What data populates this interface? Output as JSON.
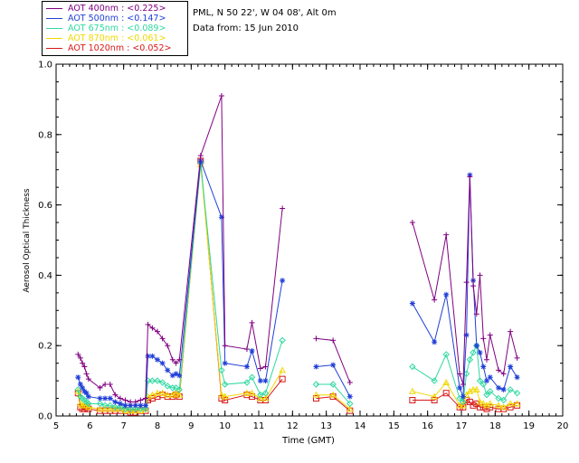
{
  "legend": {
    "items": [
      {
        "name": "AOT  400nm",
        "value": "<0.225>",
        "color": "#800080"
      },
      {
        "name": "AOT  500nm",
        "value": "<0.147>",
        "color": "#1f3fd8"
      },
      {
        "name": "AOT  675nm",
        "value": "<0.089>",
        "color": "#2fd8a0"
      },
      {
        "name": "AOT  870nm",
        "value": "<0.061>",
        "color": "#f0d800"
      },
      {
        "name": "AOT 1020nm",
        "value": "<0.052>",
        "color": "#d81818"
      }
    ]
  },
  "info": {
    "location": "PML, N 50 22', W 04 08', Alt 0m",
    "date": "Data from: 15 Jun 2010"
  },
  "chart_data": {
    "type": "line",
    "title": "",
    "xlabel": "Time (GMT)",
    "ylabel": "Aerosol Optical Thickness",
    "xlim": [
      5,
      20
    ],
    "ylim": [
      0,
      1.0
    ],
    "xticks": [
      5,
      6,
      7,
      8,
      9,
      10,
      11,
      12,
      13,
      14,
      15,
      16,
      17,
      18,
      19,
      20
    ],
    "yticks": [
      0.0,
      0.2,
      0.4,
      0.6,
      0.8,
      1.0
    ],
    "ytick_labels": [
      "0.0",
      "0.2",
      "0.4",
      "0.6",
      "0.8",
      "1.0"
    ],
    "series": [
      {
        "name": "AOT 400nm",
        "marker": "plus",
        "x": [
          5.65,
          5.72,
          5.78,
          5.84,
          5.9,
          5.96,
          6.3,
          6.45,
          6.6,
          6.75,
          6.9,
          7.05,
          7.2,
          7.35,
          7.5,
          7.65,
          7.72,
          7.85,
          8.0,
          8.15,
          8.3,
          8.45,
          8.55,
          8.65,
          9.28,
          9.9,
          10.0,
          10.65,
          10.8,
          11.05,
          11.2,
          11.7,
          12.7,
          13.2,
          13.7,
          15.55,
          16.2,
          16.55,
          16.95,
          17.05,
          17.15,
          17.25,
          17.35,
          17.45,
          17.55,
          17.65,
          17.75,
          17.85,
          18.1,
          18.25,
          18.45,
          18.65
        ],
        "values": [
          0.175,
          0.165,
          0.15,
          0.14,
          0.12,
          0.105,
          0.08,
          0.09,
          0.09,
          0.06,
          0.05,
          0.045,
          0.04,
          0.04,
          0.045,
          0.05,
          0.26,
          0.25,
          0.24,
          0.22,
          0.2,
          0.16,
          0.15,
          0.16,
          0.74,
          0.91,
          0.2,
          0.19,
          0.265,
          0.135,
          0.14,
          0.59,
          0.22,
          0.215,
          0.095,
          0.55,
          0.33,
          0.515,
          0.12,
          0.09,
          0.38,
          0.68,
          0.37,
          0.29,
          0.4,
          0.22,
          0.16,
          0.23,
          0.13,
          0.12,
          0.24,
          0.165
        ]
      },
      {
        "name": "AOT 500nm",
        "marker": "star",
        "x": [
          5.65,
          5.72,
          5.78,
          5.84,
          5.9,
          5.96,
          6.3,
          6.45,
          6.6,
          6.75,
          6.9,
          7.05,
          7.2,
          7.35,
          7.5,
          7.65,
          7.72,
          7.85,
          8.0,
          8.15,
          8.3,
          8.45,
          8.55,
          8.65,
          9.28,
          9.9,
          10.0,
          10.65,
          10.8,
          11.05,
          11.2,
          11.7,
          12.7,
          13.2,
          13.7,
          15.55,
          16.2,
          16.55,
          16.95,
          17.05,
          17.15,
          17.25,
          17.35,
          17.45,
          17.55,
          17.65,
          17.75,
          17.85,
          18.1,
          18.25,
          18.45,
          18.65
        ],
        "values": [
          0.11,
          0.09,
          0.08,
          0.07,
          0.065,
          0.055,
          0.05,
          0.05,
          0.05,
          0.04,
          0.035,
          0.03,
          0.03,
          0.03,
          0.03,
          0.03,
          0.17,
          0.17,
          0.16,
          0.15,
          0.13,
          0.115,
          0.12,
          0.115,
          0.725,
          0.565,
          0.15,
          0.14,
          0.185,
          0.1,
          0.1,
          0.385,
          0.14,
          0.145,
          0.055,
          0.32,
          0.21,
          0.345,
          0.08,
          0.055,
          0.23,
          0.685,
          0.385,
          0.2,
          0.18,
          0.14,
          0.1,
          0.11,
          0.08,
          0.075,
          0.14,
          0.11
        ]
      },
      {
        "name": "AOT 675nm",
        "marker": "diamond",
        "x": [
          5.65,
          5.72,
          5.78,
          5.84,
          5.9,
          5.96,
          6.3,
          6.45,
          6.6,
          6.75,
          6.9,
          7.05,
          7.2,
          7.35,
          7.5,
          7.65,
          7.72,
          7.85,
          8.0,
          8.15,
          8.3,
          8.45,
          8.55,
          8.65,
          9.28,
          9.9,
          10.0,
          10.65,
          10.8,
          11.05,
          11.2,
          11.7,
          12.7,
          13.2,
          13.7,
          15.55,
          16.2,
          16.55,
          16.95,
          17.05,
          17.15,
          17.25,
          17.35,
          17.45,
          17.55,
          17.65,
          17.75,
          17.85,
          18.1,
          18.25,
          18.45,
          18.65
        ],
        "values": [
          0.075,
          0.055,
          0.05,
          0.045,
          0.04,
          0.035,
          0.035,
          0.03,
          0.03,
          0.025,
          0.025,
          0.02,
          0.02,
          0.02,
          0.02,
          0.02,
          0.1,
          0.1,
          0.1,
          0.095,
          0.085,
          0.08,
          0.08,
          0.075,
          0.72,
          0.13,
          0.09,
          0.095,
          0.11,
          0.06,
          0.065,
          0.215,
          0.09,
          0.09,
          0.035,
          0.14,
          0.1,
          0.175,
          0.05,
          0.04,
          0.12,
          0.16,
          0.18,
          0.2,
          0.1,
          0.09,
          0.06,
          0.07,
          0.05,
          0.045,
          0.075,
          0.065
        ]
      },
      {
        "name": "AOT 870nm",
        "marker": "triangle",
        "x": [
          5.65,
          5.72,
          5.78,
          5.84,
          5.9,
          5.96,
          6.3,
          6.45,
          6.6,
          6.75,
          6.9,
          7.05,
          7.2,
          7.35,
          7.5,
          7.65,
          7.72,
          7.85,
          8.0,
          8.15,
          8.3,
          8.45,
          8.55,
          8.65,
          9.28,
          9.9,
          10.0,
          10.65,
          10.8,
          11.05,
          11.2,
          11.7,
          12.7,
          13.2,
          13.7,
          15.55,
          16.2,
          16.55,
          16.95,
          17.05,
          17.15,
          17.25,
          17.35,
          17.45,
          17.55,
          17.65,
          17.75,
          17.85,
          18.1,
          18.25,
          18.45,
          18.65
        ],
        "values": [
          0.07,
          0.035,
          0.03,
          0.03,
          0.03,
          0.025,
          0.02,
          0.02,
          0.02,
          0.02,
          0.02,
          0.015,
          0.015,
          0.015,
          0.015,
          0.02,
          0.055,
          0.06,
          0.065,
          0.065,
          0.06,
          0.06,
          0.065,
          0.06,
          0.715,
          0.06,
          0.055,
          0.065,
          0.065,
          0.05,
          0.05,
          0.13,
          0.06,
          0.06,
          0.02,
          0.07,
          0.055,
          0.095,
          0.03,
          0.03,
          0.06,
          0.07,
          0.075,
          0.075,
          0.04,
          0.035,
          0.03,
          0.035,
          0.03,
          0.025,
          0.035,
          0.035
        ]
      },
      {
        "name": "AOT 1020nm",
        "marker": "square",
        "x": [
          5.65,
          5.72,
          5.78,
          5.84,
          5.9,
          5.96,
          6.3,
          6.45,
          6.6,
          6.75,
          6.9,
          7.05,
          7.2,
          7.35,
          7.5,
          7.65,
          7.72,
          7.85,
          8.0,
          8.15,
          8.3,
          8.45,
          8.55,
          8.65,
          9.28,
          9.9,
          10.0,
          10.65,
          10.8,
          11.05,
          11.2,
          11.7,
          12.7,
          13.2,
          13.7,
          15.55,
          16.2,
          16.55,
          16.95,
          17.05,
          17.15,
          17.25,
          17.35,
          17.45,
          17.55,
          17.65,
          17.75,
          17.85,
          18.1,
          18.25,
          18.45,
          18.65
        ],
        "values": [
          0.065,
          0.025,
          0.02,
          0.02,
          0.025,
          0.02,
          0.015,
          0.015,
          0.015,
          0.015,
          0.015,
          0.015,
          0.01,
          0.01,
          0.015,
          0.015,
          0.045,
          0.05,
          0.055,
          0.06,
          0.055,
          0.055,
          0.06,
          0.055,
          0.725,
          0.05,
          0.045,
          0.06,
          0.055,
          0.045,
          0.045,
          0.105,
          0.05,
          0.055,
          0.015,
          0.045,
          0.045,
          0.065,
          0.025,
          0.025,
          0.045,
          0.04,
          0.03,
          0.035,
          0.025,
          0.025,
          0.02,
          0.025,
          0.02,
          0.02,
          0.025,
          0.03
        ]
      }
    ]
  }
}
